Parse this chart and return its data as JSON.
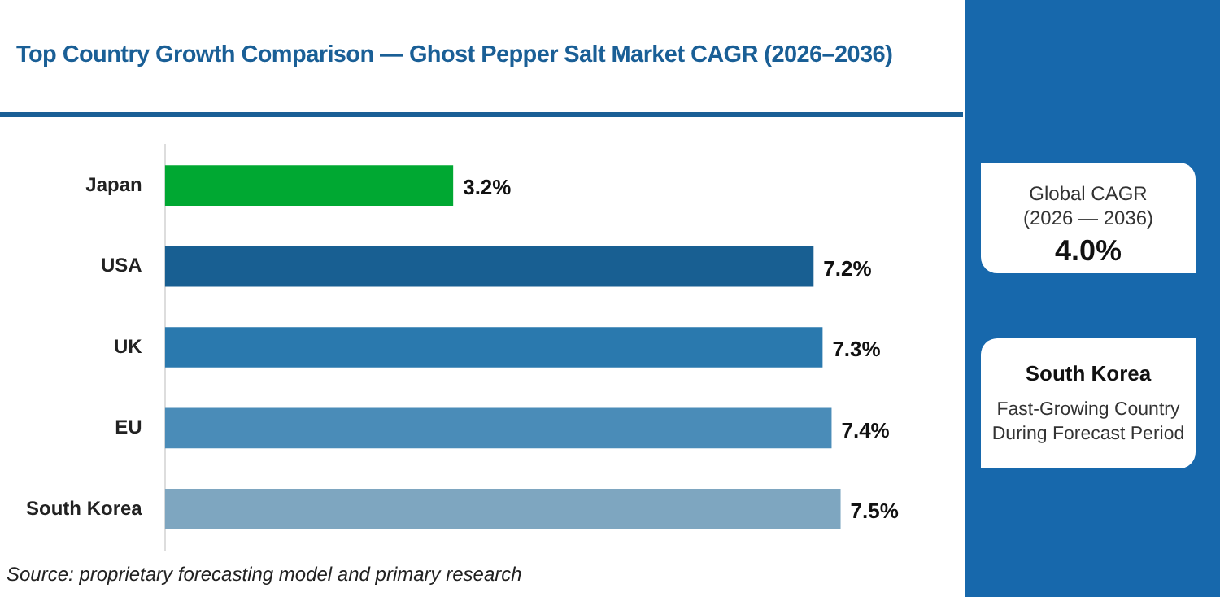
{
  "chart_data": {
    "type": "bar",
    "orientation": "horizontal",
    "title": "Top Country Growth Comparison — Ghost Pepper Salt Market CAGR (2026–2036)",
    "categories": [
      "Japan",
      "USA",
      "UK",
      "EU",
      "South Korea"
    ],
    "values": [
      3.2,
      7.2,
      7.3,
      7.4,
      7.5
    ],
    "colors": [
      "#00a832",
      "#185f92",
      "#2a79ae",
      "#4a8cb8",
      "#7ea6c0"
    ],
    "value_labels": [
      "3.2%",
      "7.2%",
      "7.3%",
      "7.4%",
      "7.5%"
    ],
    "legend": false,
    "annotations": [
      "Global CAGR (2026 — 2036)",
      "4.0%",
      "South Korea",
      "Fast-Growing Country During Forecast Period",
      "Source: proprietary forecasting model and primary research"
    ]
  }
}
